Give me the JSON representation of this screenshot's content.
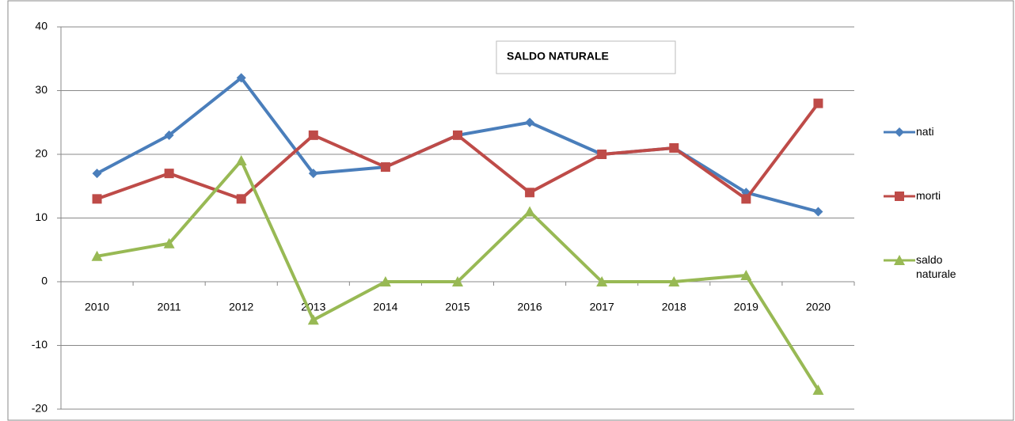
{
  "chart_data": {
    "type": "line",
    "title": "SALDO NATURALE",
    "categories": [
      "2010",
      "2011",
      "2012",
      "2013",
      "2014",
      "2015",
      "2016",
      "2017",
      "2018",
      "2019",
      "2020"
    ],
    "series": [
      {
        "name": "nati",
        "color": "#4a7ebb",
        "marker": "diamond",
        "values": [
          17,
          23,
          32,
          17,
          18,
          23,
          25,
          20,
          21,
          14,
          11
        ]
      },
      {
        "name": "morti",
        "color": "#be4b48",
        "marker": "square",
        "values": [
          13,
          17,
          13,
          23,
          18,
          23,
          14,
          20,
          21,
          13,
          28
        ]
      },
      {
        "name": "saldo naturale",
        "color": "#98b954",
        "marker": "triangle",
        "values": [
          4,
          6,
          19,
          -6,
          0,
          0,
          11,
          0,
          0,
          1,
          -17
        ]
      }
    ],
    "ylim": [
      -20,
      40
    ],
    "yticks": [
      -20,
      -10,
      0,
      10,
      20,
      30,
      40
    ],
    "grid": true,
    "legend": "right"
  }
}
